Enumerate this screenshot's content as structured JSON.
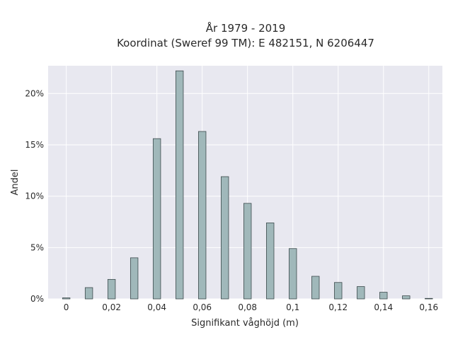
{
  "chart_data": {
    "type": "bar",
    "title_line1": "År 1979 - 2019",
    "title_line2": "Koordinat (Sweref 99 TM): E 482151, N 6206447",
    "xlabel": "Signifikant våghöjd (m)",
    "ylabel": "Andel",
    "x": [
      0,
      0.01,
      0.02,
      0.03,
      0.04,
      0.05,
      0.06,
      0.07,
      0.08,
      0.09,
      0.1,
      0.11,
      0.12,
      0.13,
      0.14,
      0.15,
      0.16
    ],
    "values": [
      0.1,
      1.1,
      1.9,
      4.0,
      15.6,
      22.2,
      16.3,
      11.9,
      9.3,
      7.4,
      4.9,
      2.2,
      1.6,
      1.2,
      0.65,
      0.3,
      0.05
    ],
    "xlim": [
      -0.008,
      0.166
    ],
    "ylim": [
      0,
      22.7
    ],
    "x_ticks": [
      0,
      0.02,
      0.04,
      0.06,
      0.08,
      0.1,
      0.12,
      0.14,
      0.16
    ],
    "x_tick_labels": [
      "0",
      "0,02",
      "0,04",
      "0,06",
      "0,08",
      "0,1",
      "0,12",
      "0,14",
      "0,16"
    ],
    "y_ticks": [
      0,
      5,
      10,
      15,
      20
    ],
    "y_tick_labels": [
      "0%",
      "5%",
      "10%",
      "15%",
      "20%"
    ],
    "grid": true,
    "colors": {
      "bar_fill": "#a0b8ba",
      "bar_stroke": "#3c4a4c",
      "plot_bg": "#e8e8f0",
      "grid": "#ffffff",
      "text": "#2a2a2a"
    }
  }
}
